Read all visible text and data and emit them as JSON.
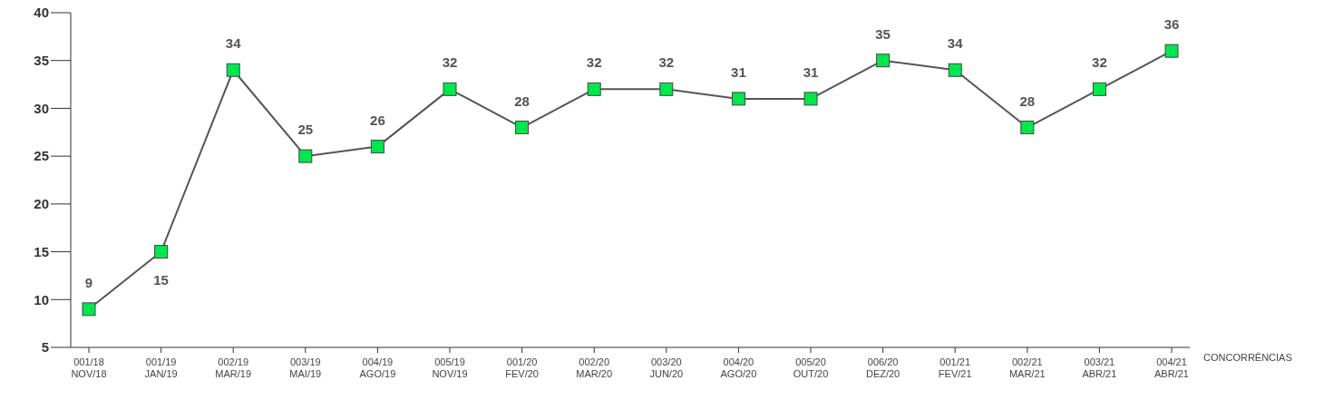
{
  "chart_data": {
    "type": "line",
    "xlabel": "CONCORRÊNCIAS",
    "categories": [
      "001/18\nNOV/18",
      "001/19\nJAN/19",
      "002/19\nMAR/19",
      "003/19\nMAI/19",
      "004/19\nAGO/19",
      "005/19\nNOV/19",
      "001/20\nFEV/20",
      "002/20\nMAR/20",
      "003/20\nJUN/20",
      "004/20\nAGO/20",
      "005/20\nOUT/20",
      "006/20\nDEZ/20",
      "001/21\nFEV/21",
      "002/21\nMAR/21",
      "003/21\nABR/21",
      "004/21\nABR/21"
    ],
    "series": [
      {
        "color": "#555555",
        "colors": [
          "#00e64d",
          "#00e64d",
          "#00e64d",
          "#00e64d",
          "#00e64d",
          "#00e64d",
          "#00e64d",
          "#00e64d",
          "#00e64d",
          "#00e64d",
          "#00e64d",
          "#00e64d",
          "#00e64d",
          "#00e64d",
          "#00e64d",
          "#00e64d"
        ],
        "values": [
          9,
          15,
          34,
          25,
          26,
          32,
          28,
          32,
          32,
          31,
          31,
          35,
          34,
          28,
          32,
          36
        ]
      }
    ],
    "ylim": [
      5,
      40
    ],
    "yticks": [
      5,
      10,
      15,
      20,
      25,
      30,
      35,
      40
    ],
    "grid": false,
    "legend": false,
    "marker": "square",
    "line_style": "solid",
    "data_labels": true
  }
}
